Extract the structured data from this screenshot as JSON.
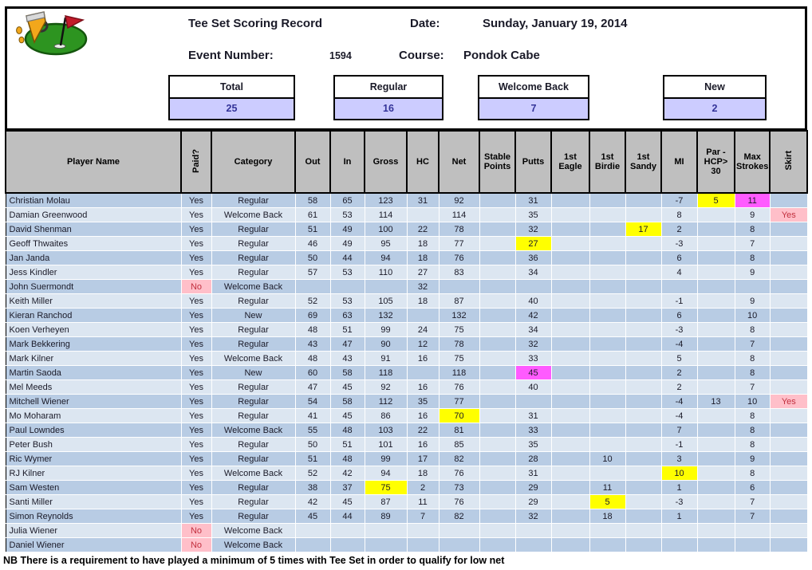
{
  "header": {
    "title": "Tee Set Scoring Record",
    "date_label": "Date:",
    "date_value": "Sunday, January 19, 2014",
    "event_label": "Event Number:",
    "event_value": "1594",
    "course_label": "Course:",
    "course_value": "Pondok Cabe",
    "logo": "golf-green-flag-clipart"
  },
  "summary": [
    {
      "key": "total",
      "label": "Total",
      "value": "25"
    },
    {
      "key": "regular",
      "label": "Regular",
      "value": "16"
    },
    {
      "key": "welcome-back",
      "label": "Welcome Back",
      "value": "7"
    },
    {
      "key": "new",
      "label": "New",
      "value": "2"
    }
  ],
  "colors": {
    "summary_fill": "#CCCCFF",
    "summary_text": "#333399",
    "header_gray": "#BFBFBF",
    "row_dark": "#B8CCE4",
    "row_light": "#DCE6F1",
    "highlight_yellow": "#FFFF00",
    "highlight_magenta": "#FF5BFF",
    "highlight_pink": "#FFBFC9",
    "alert_text_red": "#C2303F"
  },
  "table": {
    "columns": [
      {
        "key": "player-name",
        "label": "Player Name",
        "vertical": false
      },
      {
        "key": "paid",
        "label": "Paid?",
        "vertical": true
      },
      {
        "key": "category",
        "label": "Category",
        "vertical": false
      },
      {
        "key": "out",
        "label": "Out",
        "vertical": false
      },
      {
        "key": "in",
        "label": "In",
        "vertical": false
      },
      {
        "key": "gross",
        "label": "Gross",
        "vertical": false
      },
      {
        "key": "hc",
        "label": "HC",
        "vertical": false
      },
      {
        "key": "net",
        "label": "Net",
        "vertical": false
      },
      {
        "key": "stable-points",
        "label": "Stable Points",
        "vertical": false
      },
      {
        "key": "putts",
        "label": "Putts",
        "vertical": false
      },
      {
        "key": "1st-eagle",
        "label": "1st Eagle",
        "vertical": false
      },
      {
        "key": "1st-birdie",
        "label": "1st Birdie",
        "vertical": false
      },
      {
        "key": "1st-sandy",
        "label": "1st Sandy",
        "vertical": false
      },
      {
        "key": "mi",
        "label": "MI",
        "vertical": false
      },
      {
        "key": "par-hcp-30",
        "label": "Par - HCP> 30",
        "vertical": false
      },
      {
        "key": "max-strokes",
        "label": "Max Strokes",
        "vertical": false
      },
      {
        "key": "skirt",
        "label": "Skirt",
        "vertical": true
      }
    ],
    "rows": [
      {
        "cells": [
          "Christian Molau",
          "Yes",
          "Regular",
          "58",
          "65",
          "123",
          "31",
          "92",
          "",
          "31",
          "",
          "",
          "",
          "-7",
          "5",
          "11",
          ""
        ],
        "hl": {
          "14": "yellow",
          "15": "magenta"
        }
      },
      {
        "cells": [
          "Damian Greenwood",
          "Yes",
          "Welcome Back",
          "61",
          "53",
          "114",
          "",
          "114",
          "",
          "35",
          "",
          "",
          "",
          "8",
          "",
          "9",
          "Yes"
        ],
        "hl": {
          "16": "pink"
        }
      },
      {
        "cells": [
          "David Shenman",
          "Yes",
          "Regular",
          "51",
          "49",
          "100",
          "22",
          "78",
          "",
          "32",
          "",
          "",
          "17",
          "2",
          "",
          "8",
          ""
        ],
        "hl": {
          "12": "yellow"
        }
      },
      {
        "cells": [
          "Geoff Thwaites",
          "Yes",
          "Regular",
          "46",
          "49",
          "95",
          "18",
          "77",
          "",
          "27",
          "",
          "",
          "",
          "-3",
          "",
          "7",
          ""
        ],
        "hl": {
          "9": "yellow"
        }
      },
      {
        "cells": [
          "Jan Janda",
          "Yes",
          "Regular",
          "50",
          "44",
          "94",
          "18",
          "76",
          "",
          "36",
          "",
          "",
          "",
          "6",
          "",
          "8",
          ""
        ],
        "hl": {}
      },
      {
        "cells": [
          "Jess Kindler",
          "Yes",
          "Regular",
          "57",
          "53",
          "110",
          "27",
          "83",
          "",
          "34",
          "",
          "",
          "",
          "4",
          "",
          "9",
          ""
        ],
        "hl": {}
      },
      {
        "cells": [
          "John Suermondt",
          "No",
          "Welcome Back",
          "",
          "",
          "",
          "32",
          "",
          "",
          "",
          "",
          "",
          "",
          "",
          "",
          "",
          ""
        ],
        "hl": {
          "1": "pink"
        }
      },
      {
        "cells": [
          "Keith Miller",
          "Yes",
          "Regular",
          "52",
          "53",
          "105",
          "18",
          "87",
          "",
          "40",
          "",
          "",
          "",
          "-1",
          "",
          "9",
          ""
        ],
        "hl": {}
      },
      {
        "cells": [
          "Kieran Ranchod",
          "Yes",
          "New",
          "69",
          "63",
          "132",
          "",
          "132",
          "",
          "42",
          "",
          "",
          "",
          "6",
          "",
          "10",
          ""
        ],
        "hl": {}
      },
      {
        "cells": [
          "Koen Verheyen",
          "Yes",
          "Regular",
          "48",
          "51",
          "99",
          "24",
          "75",
          "",
          "34",
          "",
          "",
          "",
          "-3",
          "",
          "8",
          ""
        ],
        "hl": {}
      },
      {
        "cells": [
          "Mark Bekkering",
          "Yes",
          "Regular",
          "43",
          "47",
          "90",
          "12",
          "78",
          "",
          "32",
          "",
          "",
          "",
          "-4",
          "",
          "7",
          ""
        ],
        "hl": {}
      },
      {
        "cells": [
          "Mark Kilner",
          "Yes",
          "Welcome Back",
          "48",
          "43",
          "91",
          "16",
          "75",
          "",
          "33",
          "",
          "",
          "",
          "5",
          "",
          "8",
          ""
        ],
        "hl": {}
      },
      {
        "cells": [
          "Martin Saoda",
          "Yes",
          "New",
          "60",
          "58",
          "118",
          "",
          "118",
          "",
          "45",
          "",
          "",
          "",
          "2",
          "",
          "8",
          ""
        ],
        "hl": {
          "9": "magenta"
        }
      },
      {
        "cells": [
          "Mel Meeds",
          "Yes",
          "Regular",
          "47",
          "45",
          "92",
          "16",
          "76",
          "",
          "40",
          "",
          "",
          "",
          "2",
          "",
          "7",
          ""
        ],
        "hl": {}
      },
      {
        "cells": [
          "Mitchell Wiener",
          "Yes",
          "Regular",
          "54",
          "58",
          "112",
          "35",
          "77",
          "",
          "",
          "",
          "",
          "",
          "-4",
          "13",
          "10",
          "Yes"
        ],
        "hl": {
          "16": "pink"
        }
      },
      {
        "cells": [
          "Mo Moharam",
          "Yes",
          "Regular",
          "41",
          "45",
          "86",
          "16",
          "70",
          "",
          "31",
          "",
          "",
          "",
          "-4",
          "",
          "8",
          ""
        ],
        "hl": {
          "7": "yellow"
        }
      },
      {
        "cells": [
          "Paul Lowndes",
          "Yes",
          "Welcome Back",
          "55",
          "48",
          "103",
          "22",
          "81",
          "",
          "33",
          "",
          "",
          "",
          "7",
          "",
          "8",
          ""
        ],
        "hl": {}
      },
      {
        "cells": [
          "Peter Bush",
          "Yes",
          "Regular",
          "50",
          "51",
          "101",
          "16",
          "85",
          "",
          "35",
          "",
          "",
          "",
          "-1",
          "",
          "8",
          ""
        ],
        "hl": {}
      },
      {
        "cells": [
          "Ric Wymer",
          "Yes",
          "Regular",
          "51",
          "48",
          "99",
          "17",
          "82",
          "",
          "28",
          "",
          "10",
          "",
          "3",
          "",
          "9",
          ""
        ],
        "hl": {}
      },
      {
        "cells": [
          "RJ Kilner",
          "Yes",
          "Welcome Back",
          "52",
          "42",
          "94",
          "18",
          "76",
          "",
          "31",
          "",
          "",
          "",
          "10",
          "",
          "8",
          ""
        ],
        "hl": {
          "13": "yellow"
        }
      },
      {
        "cells": [
          "Sam Westen",
          "Yes",
          "Regular",
          "38",
          "37",
          "75",
          "2",
          "73",
          "",
          "29",
          "",
          "11",
          "",
          "1",
          "",
          "6",
          ""
        ],
        "hl": {
          "5": "yellow"
        }
      },
      {
        "cells": [
          "Santi Miller",
          "Yes",
          "Regular",
          "42",
          "45",
          "87",
          "11",
          "76",
          "",
          "29",
          "",
          "5",
          "",
          "-3",
          "",
          "7",
          ""
        ],
        "hl": {
          "11": "yellow"
        }
      },
      {
        "cells": [
          "Simon Reynolds",
          "Yes",
          "Regular",
          "45",
          "44",
          "89",
          "7",
          "82",
          "",
          "32",
          "",
          "18",
          "",
          "1",
          "",
          "7",
          ""
        ],
        "hl": {}
      },
      {
        "cells": [
          "Julia Wiener",
          "No",
          "Welcome Back",
          "",
          "",
          "",
          "",
          "",
          "",
          "",
          "",
          "",
          "",
          "",
          "",
          "",
          ""
        ],
        "hl": {
          "1": "pink"
        }
      },
      {
        "cells": [
          "Daniel Wiener",
          "No",
          "Welcome Back",
          "",
          "",
          "",
          "",
          "",
          "",
          "",
          "",
          "",
          "",
          "",
          "",
          "",
          ""
        ],
        "hl": {
          "1": "pink"
        }
      }
    ]
  },
  "footer_note": "NB There is a requirement to have played a minimum of 5 times with Tee Set in order to qualify for low net"
}
